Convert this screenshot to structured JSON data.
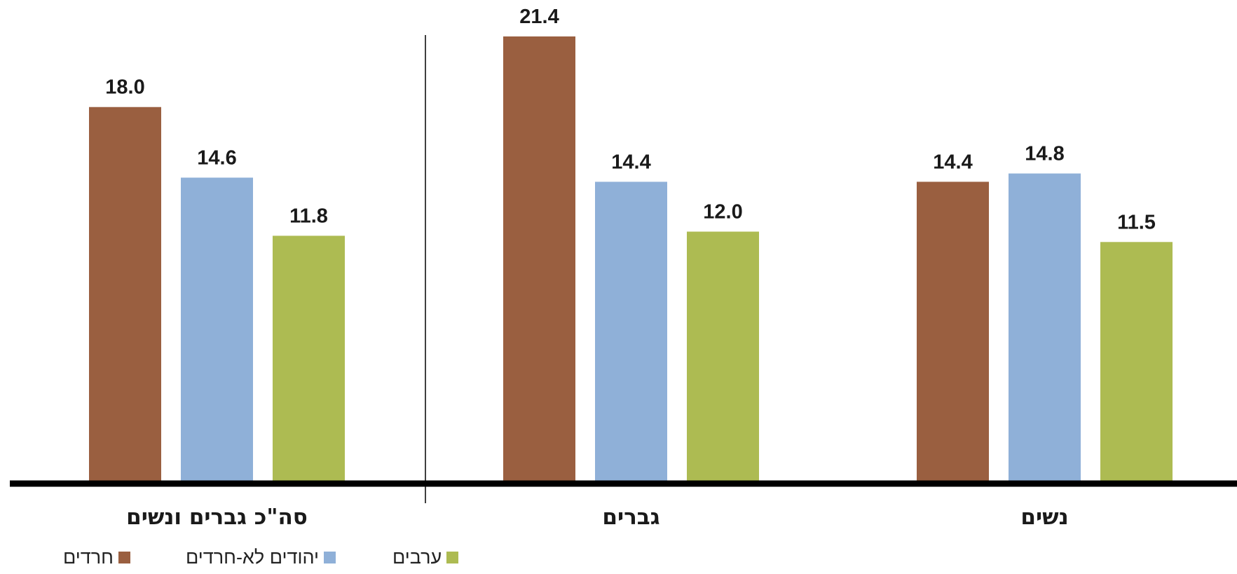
{
  "chart_data": {
    "type": "bar",
    "categories": [
      "סה\"כ גברים ונשים",
      "גברים",
      "נשים"
    ],
    "series": [
      {
        "name": "חרדים",
        "values": [
          18.0,
          21.4,
          14.4
        ],
        "color": "#9a5f40"
      },
      {
        "name": "יהודים לא-חרדים",
        "values": [
          14.6,
          14.4,
          14.8
        ],
        "color": "#8fb0d8"
      },
      {
        "name": "ערבים",
        "values": [
          11.8,
          12.0,
          11.5
        ],
        "color": "#adbb52"
      }
    ],
    "ylim": [
      0,
      21.4
    ],
    "grid": false,
    "legend_position": "bottom-left"
  }
}
